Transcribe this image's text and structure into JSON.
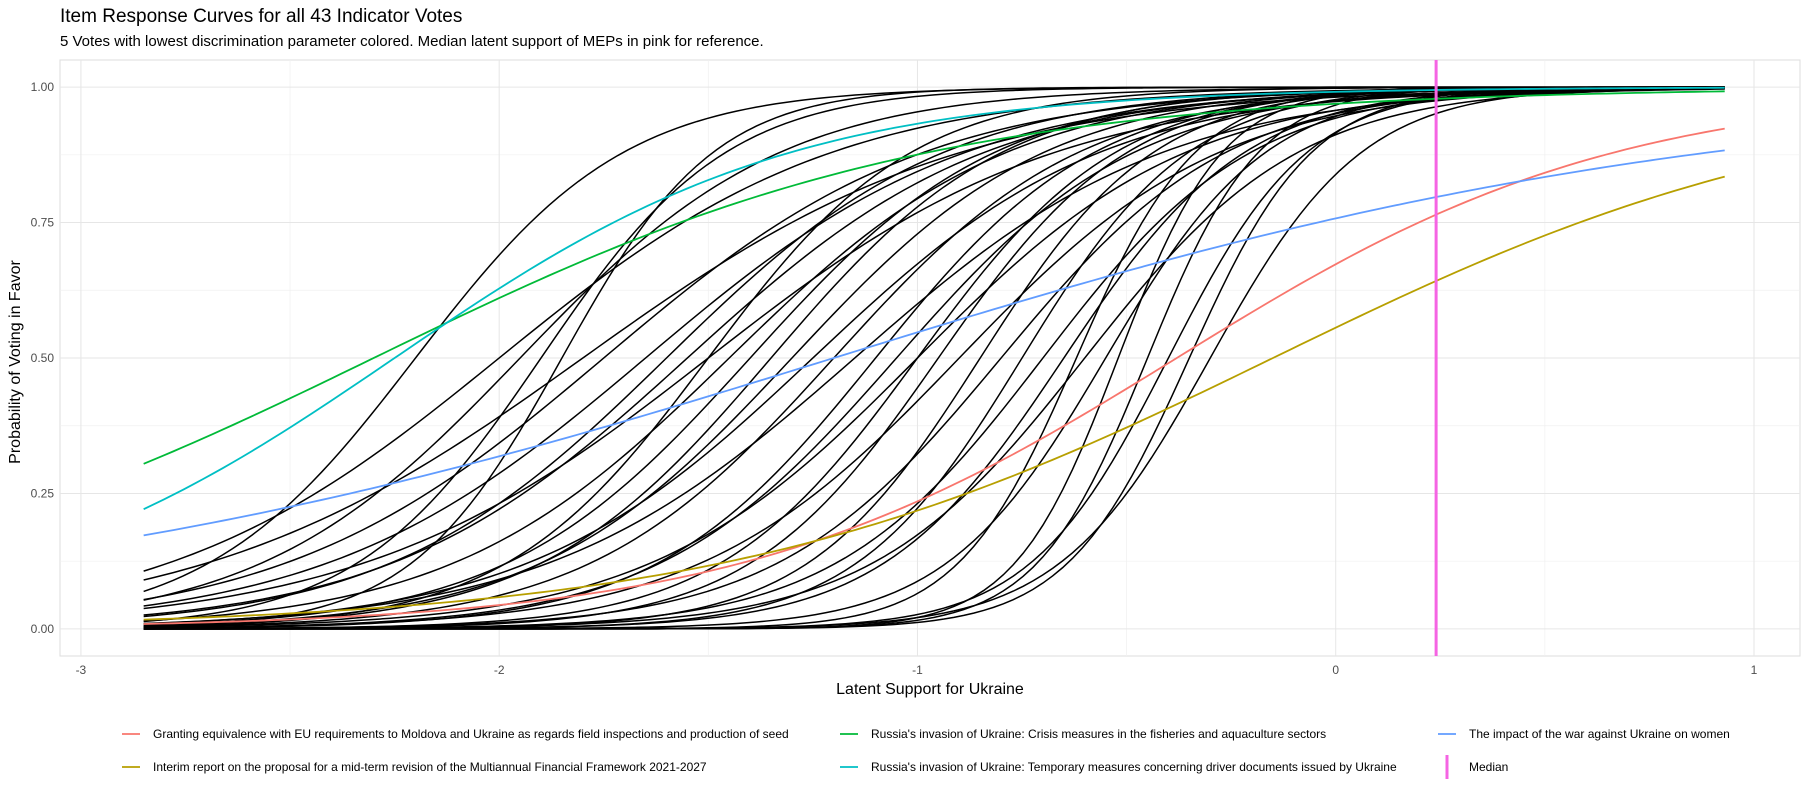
{
  "chart_data": {
    "type": "line",
    "title": "Item Response Curves for all 43 Indicator Votes",
    "subtitle": "5 Votes with lowest discrimination parameter colored. Median latent support of MEPs in pink for reference.",
    "xlabel": "Latent Support for Ukraine",
    "ylabel": "Probability of Voting in Favor",
    "xlim": [
      -3.05,
      1.11
    ],
    "ylim": [
      -0.05,
      1.05
    ],
    "x_range": [
      -2.85,
      0.93
    ],
    "xticks": [
      -3,
      -2,
      -1,
      0,
      1
    ],
    "xtick_labels": [
      "-3",
      "-2",
      "-1",
      "0",
      "1"
    ],
    "yticks": [
      0,
      0.25,
      0.5,
      0.75,
      1
    ],
    "ytick_labels": [
      "0.00",
      "0.25",
      "0.50",
      "0.75",
      "1.00"
    ],
    "grid": true,
    "legend_position": "bottom",
    "median": {
      "name": "Median",
      "x": 0.24,
      "color": "#F564E3"
    },
    "series": [
      {
        "name": "Granting equivalence with EU requirements to Moldova and Ukraine as regards field inspections and production of seed",
        "color": "#F8766D",
        "highlighted": true,
        "a": 1.9,
        "b": -0.38
      },
      {
        "name": "Interim report on the proposal for a mid-term revision of the Multiannual Financial Framework 2021-2027",
        "color": "#B79F00",
        "highlighted": true,
        "a": 1.5,
        "b": -0.15
      },
      {
        "name": "Russia's invasion of Ukraine: Crisis measures in the fisheries and aquaculture sectors",
        "color": "#00BA38",
        "highlighted": true,
        "a": 1.5,
        "b": -2.3
      },
      {
        "name": "Russia's invasion of Ukraine: Temporary measures concerning driver documents issued by Ukraine",
        "color": "#00BFC4",
        "highlighted": true,
        "a": 2.1,
        "b": -2.25
      },
      {
        "name": "The impact of the war against Ukraine on women",
        "color": "#619CFF",
        "highlighted": true,
        "a": 0.95,
        "b": -1.2
      },
      {
        "a": 4.0,
        "b": -2.2
      },
      {
        "a": 5.5,
        "b": -1.85
      },
      {
        "a": 4.5,
        "b": -1.9
      },
      {
        "a": 3.2,
        "b": -1.95
      },
      {
        "a": 3.0,
        "b": -1.6
      },
      {
        "a": 2.5,
        "b": -2.0
      },
      {
        "a": 2.6,
        "b": -1.75
      },
      {
        "a": 3.0,
        "b": -1.45
      },
      {
        "a": 3.3,
        "b": -1.3
      },
      {
        "a": 2.8,
        "b": -1.55
      },
      {
        "a": 3.4,
        "b": -1.2
      },
      {
        "a": 3.6,
        "b": -1.35
      },
      {
        "a": 2.2,
        "b": -1.8
      },
      {
        "a": 2.4,
        "b": -1.5
      },
      {
        "a": 3.8,
        "b": -1.1
      },
      {
        "a": 4.2,
        "b": -1.0
      },
      {
        "a": 3.5,
        "b": -1.05
      },
      {
        "a": 2.9,
        "b": -1.25
      },
      {
        "a": 4.4,
        "b": -0.95
      },
      {
        "a": 3.2,
        "b": -0.9
      },
      {
        "a": 4.8,
        "b": -0.85
      },
      {
        "a": 3.7,
        "b": -0.8
      },
      {
        "a": 5.0,
        "b": -0.75
      },
      {
        "a": 4.0,
        "b": -0.7
      },
      {
        "a": 2.7,
        "b": -1.15
      },
      {
        "a": 4.6,
        "b": -0.65
      },
      {
        "a": 3.9,
        "b": -0.6
      },
      {
        "a": 5.2,
        "b": -0.55
      },
      {
        "a": 3.4,
        "b": -1.4
      },
      {
        "a": 2.6,
        "b": -1.65
      },
      {
        "a": 4.1,
        "b": -1.5
      },
      {
        "a": 3.1,
        "b": -1.0
      },
      {
        "a": 7.0,
        "b": -0.62
      },
      {
        "a": 8.0,
        "b": -0.52
      },
      {
        "a": 7.5,
        "b": -0.45
      },
      {
        "a": 6.8,
        "b": -0.35
      },
      {
        "a": 6.0,
        "b": -0.4
      },
      {
        "a": 5.5,
        "b": -0.3
      }
    ]
  }
}
